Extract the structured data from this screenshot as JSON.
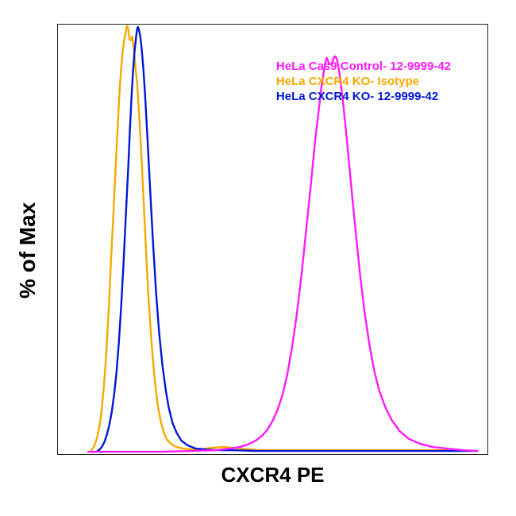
{
  "chart": {
    "type": "flow-cytometry-histogram",
    "background_color": "#ffffff",
    "border_color": "#222222",
    "xlabel": "CXCR4 PE",
    "ylabel": "% of Max",
    "label_fontsize": 27,
    "label_fontweight": 700,
    "legend": {
      "fontsize": 15,
      "fontweight": 700,
      "items": [
        {
          "label": "HeLa Cas9 Control- 12-9999-42",
          "color": "#ff1aff"
        },
        {
          "label": "HeLa CXCR4 KO- Isotype",
          "color": "#f5a900"
        },
        {
          "label": "HeLa CXCR4 KO- 12-9999-42",
          "color": "#0018d4"
        }
      ]
    },
    "xlim": [
      0,
      543
    ],
    "ylim": [
      0,
      543
    ],
    "line_width": 2.4,
    "series": [
      {
        "name": "isotype",
        "color": "#f5a900",
        "points": [
          [
            42,
            538
          ],
          [
            44,
            536
          ],
          [
            46,
            532
          ],
          [
            48,
            527
          ],
          [
            50,
            520
          ],
          [
            52,
            510
          ],
          [
            54,
            498
          ],
          [
            56,
            480
          ],
          [
            58,
            458
          ],
          [
            60,
            432
          ],
          [
            62,
            400
          ],
          [
            65,
            345
          ],
          [
            67,
            300
          ],
          [
            70,
            242
          ],
          [
            73,
            178
          ],
          [
            76,
            120
          ],
          [
            78,
            82
          ],
          [
            80,
            55
          ],
          [
            82,
            32
          ],
          [
            84,
            18
          ],
          [
            86,
            8
          ],
          [
            87,
            2
          ],
          [
            88,
            2
          ],
          [
            89,
            6
          ],
          [
            90,
            16
          ],
          [
            92,
            20
          ],
          [
            94,
            15
          ],
          [
            96,
            30
          ],
          [
            98,
            55
          ],
          [
            100,
            72
          ],
          [
            103,
            120
          ],
          [
            106,
            175
          ],
          [
            110,
            258
          ],
          [
            114,
            338
          ],
          [
            118,
            398
          ],
          [
            122,
            446
          ],
          [
            126,
            480
          ],
          [
            130,
            502
          ],
          [
            134,
            516
          ],
          [
            138,
            525
          ],
          [
            144,
            531
          ],
          [
            150,
            534
          ],
          [
            158,
            536
          ],
          [
            168,
            537
          ],
          [
            180,
            537
          ],
          [
            195,
            535
          ],
          [
            210,
            534
          ],
          [
            230,
            536
          ],
          [
            255,
            538
          ],
          [
            290,
            538
          ],
          [
            330,
            538
          ],
          [
            380,
            538
          ],
          [
            430,
            538
          ],
          [
            480,
            538
          ],
          [
            530,
            539
          ]
        ]
      },
      {
        "name": "ko-stained",
        "color": "#0018d4",
        "points": [
          [
            50,
            539
          ],
          [
            53,
            537
          ],
          [
            56,
            533
          ],
          [
            59,
            527
          ],
          [
            62,
            518
          ],
          [
            65,
            506
          ],
          [
            68,
            490
          ],
          [
            71,
            468
          ],
          [
            74,
            440
          ],
          [
            77,
            402
          ],
          [
            80,
            355
          ],
          [
            83,
            300
          ],
          [
            86,
            238
          ],
          [
            89,
            178
          ],
          [
            91,
            132
          ],
          [
            93,
            92
          ],
          [
            95,
            58
          ],
          [
            97,
            32
          ],
          [
            99,
            14
          ],
          [
            100,
            6
          ],
          [
            101,
            3
          ],
          [
            102,
            5
          ],
          [
            104,
            14
          ],
          [
            106,
            32
          ],
          [
            108,
            56
          ],
          [
            110,
            86
          ],
          [
            113,
            140
          ],
          [
            116,
            198
          ],
          [
            120,
            272
          ],
          [
            124,
            338
          ],
          [
            128,
            390
          ],
          [
            132,
            430
          ],
          [
            136,
            460
          ],
          [
            140,
            484
          ],
          [
            145,
            504
          ],
          [
            150,
            516
          ],
          [
            156,
            526
          ],
          [
            164,
            532
          ],
          [
            174,
            536
          ],
          [
            186,
            537
          ],
          [
            200,
            538
          ],
          [
            220,
            538
          ],
          [
            250,
            539
          ],
          [
            290,
            539
          ],
          [
            340,
            539
          ],
          [
            400,
            539
          ],
          [
            460,
            539
          ],
          [
            530,
            539
          ]
        ]
      },
      {
        "name": "cas9-control",
        "color": "#ff1aff",
        "points": [
          [
            38,
            540
          ],
          [
            60,
            540
          ],
          [
            90,
            540
          ],
          [
            130,
            540
          ],
          [
            170,
            539
          ],
          [
            200,
            538
          ],
          [
            218,
            536
          ],
          [
            230,
            534
          ],
          [
            240,
            531
          ],
          [
            250,
            526
          ],
          [
            258,
            520
          ],
          [
            265,
            512
          ],
          [
            272,
            500
          ],
          [
            278,
            486
          ],
          [
            284,
            468
          ],
          [
            290,
            442
          ],
          [
            296,
            408
          ],
          [
            302,
            366
          ],
          [
            308,
            316
          ],
          [
            314,
            258
          ],
          [
            320,
            200
          ],
          [
            325,
            148
          ],
          [
            330,
            106
          ],
          [
            333,
            80
          ],
          [
            336,
            60
          ],
          [
            338,
            48
          ],
          [
            340,
            42
          ],
          [
            343,
            50
          ],
          [
            346,
            50
          ],
          [
            348,
            44
          ],
          [
            350,
            40
          ],
          [
            352,
            42
          ],
          [
            354,
            50
          ],
          [
            356,
            62
          ],
          [
            360,
            94
          ],
          [
            365,
            142
          ],
          [
            370,
            196
          ],
          [
            376,
            258
          ],
          [
            382,
            316
          ],
          [
            388,
            366
          ],
          [
            394,
            406
          ],
          [
            400,
            438
          ],
          [
            406,
            462
          ],
          [
            414,
            484
          ],
          [
            422,
            500
          ],
          [
            432,
            514
          ],
          [
            444,
            524
          ],
          [
            458,
            530
          ],
          [
            474,
            534
          ],
          [
            492,
            536
          ],
          [
            512,
            538
          ],
          [
            530,
            539
          ]
        ]
      }
    ]
  }
}
